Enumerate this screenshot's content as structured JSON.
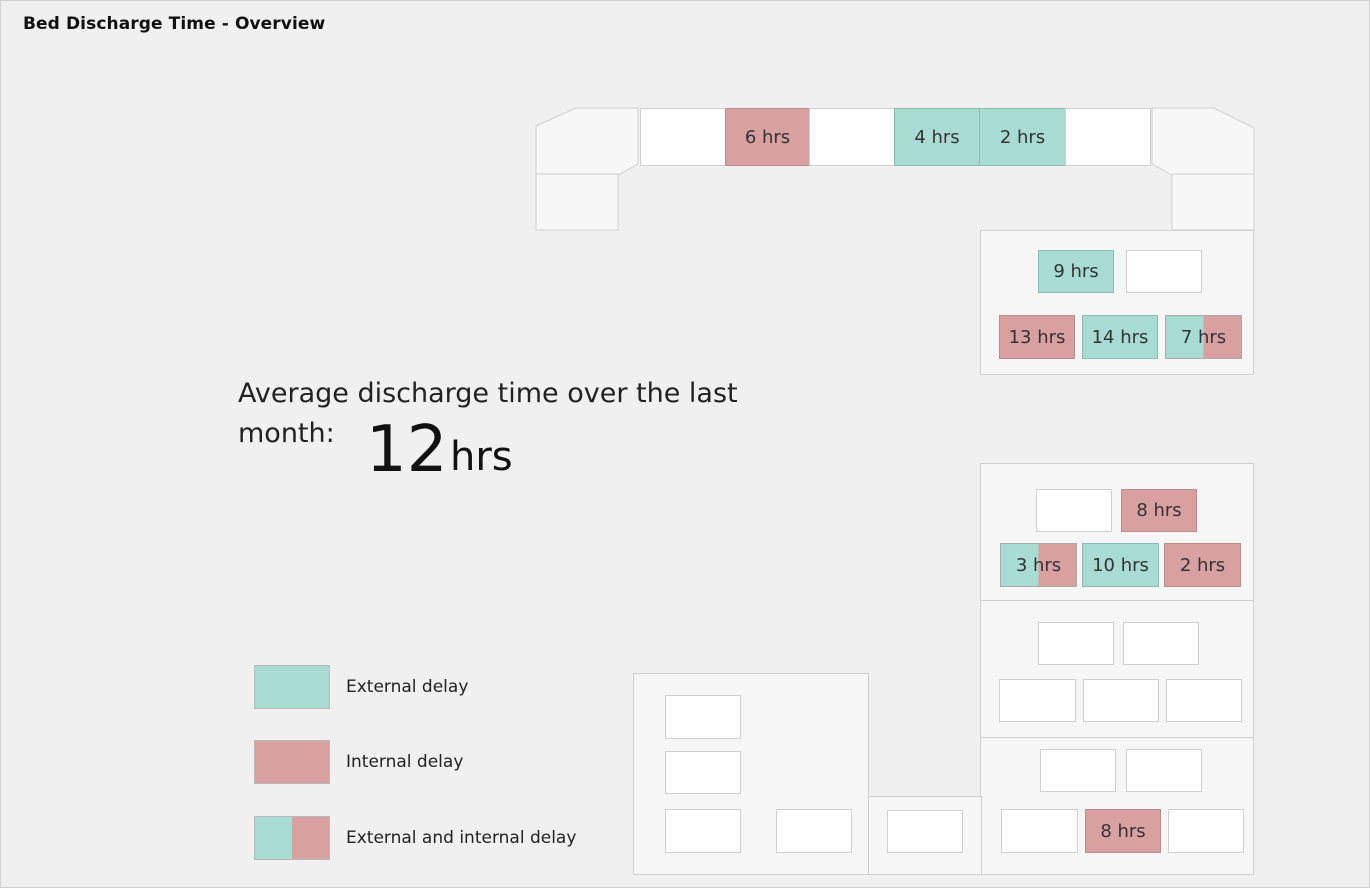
{
  "header": {
    "title": "Bed Discharge Time - Overview"
  },
  "summary": {
    "label": "Average discharge time over the last month:",
    "value": "12",
    "unit": "hrs"
  },
  "colors": {
    "external_delay": "#a8dbd2",
    "internal_delay": "#d8a0a0",
    "empty_bed": "#fefefe",
    "background": "#f0f0f0"
  },
  "legend": {
    "external": "External delay",
    "internal": "Internal delay",
    "both": "External and internal delay"
  },
  "corridor_top": {
    "beds": [
      {
        "label": "",
        "status": "empty"
      },
      {
        "label": "6 hrs",
        "status": "internal"
      },
      {
        "label": "",
        "status": "empty"
      },
      {
        "label": "4 hrs",
        "status": "external"
      },
      {
        "label": "2 hrs",
        "status": "external"
      },
      {
        "label": "",
        "status": "empty"
      }
    ]
  },
  "ward_upper_right": {
    "beds": [
      {
        "label": "9 hrs",
        "status": "external"
      },
      {
        "label": "",
        "status": "empty"
      },
      {
        "label": "13 hrs",
        "status": "internal"
      },
      {
        "label": "14 hrs",
        "status": "external"
      },
      {
        "label": "7 hrs",
        "status": "both"
      }
    ]
  },
  "ward_mid_right": {
    "beds": [
      {
        "label": "",
        "status": "empty"
      },
      {
        "label": "8 hrs",
        "status": "internal"
      },
      {
        "label": "3 hrs",
        "status": "both"
      },
      {
        "label": "10 hrs",
        "status": "external"
      },
      {
        "label": "2 hrs",
        "status": "internal"
      }
    ]
  },
  "ward_lower_right": {
    "beds": [
      {
        "label": "",
        "status": "empty"
      },
      {
        "label": "",
        "status": "empty"
      },
      {
        "label": "",
        "status": "empty"
      },
      {
        "label": "",
        "status": "empty"
      },
      {
        "label": "",
        "status": "empty"
      }
    ]
  },
  "ward_bottom_right": {
    "beds": [
      {
        "label": "",
        "status": "empty"
      },
      {
        "label": "",
        "status": "empty"
      },
      {
        "label": "",
        "status": "empty"
      },
      {
        "label": "8 hrs",
        "status": "internal"
      },
      {
        "label": "",
        "status": "empty"
      }
    ]
  },
  "ward_bottom_left": {
    "beds": [
      {
        "label": "",
        "status": "empty"
      },
      {
        "label": "",
        "status": "empty"
      },
      {
        "label": "",
        "status": "empty"
      },
      {
        "label": "",
        "status": "empty"
      }
    ]
  },
  "ward_bottom_middle": {
    "beds": [
      {
        "label": "",
        "status": "empty"
      }
    ]
  }
}
